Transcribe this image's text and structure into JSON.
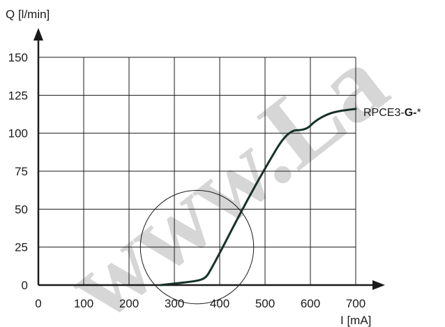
{
  "chart_data": {
    "type": "line",
    "xlabel": "I [mA]",
    "ylabel": "Q [l/min]",
    "xlim": [
      0,
      700
    ],
    "ylim": [
      0,
      150
    ],
    "x_ticks": [
      "0",
      "100",
      "200",
      "300",
      "400",
      "500",
      "600",
      "700"
    ],
    "y_ticks": [
      "0",
      "25",
      "50",
      "75",
      "100",
      "125",
      "150"
    ],
    "grid": true,
    "series": [
      {
        "name_parts": [
          "RPCE3-",
          "G-",
          "*"
        ],
        "x": [
          270,
          300,
          330,
          355,
          370,
          380,
          400,
          450,
          500,
          550,
          590,
          610,
          640,
          670,
          700
        ],
        "y": [
          0,
          1,
          2,
          3,
          5,
          10,
          21,
          50,
          77,
          102,
          102,
          108,
          113,
          115,
          116
        ]
      }
    ],
    "annotations": {
      "circle_center": [
        350,
        25
      ],
      "circle_radius_x": 125,
      "watermark": "www.La"
    },
    "colors": {
      "curve": "#17302a",
      "grid": "#1a1a1a",
      "axis": "#1a1a1a",
      "watermark": "#cfcfcf"
    }
  }
}
